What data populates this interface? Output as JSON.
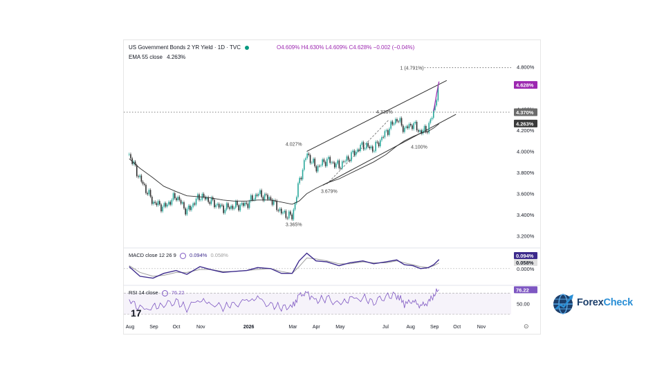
{
  "header": {
    "title": "US Government Bonds 2 YR Yield · 1D · TVC",
    "ohlc": "O4.609%  H4.630%  L4.609%  C4.628%  −0.002 (−0.04%)",
    "ema_label": "EMA 55 close",
    "ema_value": "4.263%",
    "status_color": "#089981"
  },
  "colors": {
    "price_up": "#26a69a",
    "price_down": "#2d2d2d",
    "macd_line": "#3c2a8c",
    "macd_signal": "#9e9e9e",
    "rsi_line": "#7e57c2",
    "current_badge": "#9c27b0",
    "level_badge": "#6b6b6b",
    "ema_badge": "#3a3a3a"
  },
  "logo": {
    "name": "ForexCheck",
    "part1": "Forex",
    "part2": "Check",
    "icon": "globe-chart-icon"
  },
  "chart_data": {
    "type": "line",
    "price": {
      "ylim": [
        3.1,
        4.92
      ],
      "yticks": [
        "4.800%",
        "4.400%",
        "4.200%",
        "4.000%",
        "3.800%",
        "3.600%",
        "3.400%",
        "3.200%"
      ],
      "ytick_values": [
        4.8,
        4.4,
        4.2,
        4.0,
        3.8,
        3.6,
        3.4,
        3.2
      ],
      "x": [
        "2025-08-01",
        "2025-08-15",
        "2025-09-01",
        "2025-09-15",
        "2025-10-01",
        "2025-10-15",
        "2025-11-01",
        "2025-11-15",
        "2025-12-01",
        "2025-12-15",
        "2026-01-01",
        "2026-01-15",
        "2026-02-01",
        "2026-02-15",
        "2026-03-01",
        "2026-03-10",
        "2026-03-20",
        "2026-04-01",
        "2026-04-15",
        "2026-05-01",
        "2026-05-15",
        "2026-06-01",
        "2026-06-15",
        "2026-07-01",
        "2026-07-15",
        "2026-07-25",
        "2026-08-05",
        "2026-08-15",
        "2026-08-25",
        "2026-09-01",
        "2026-09-08"
      ],
      "close": [
        3.97,
        3.74,
        3.52,
        3.47,
        3.58,
        3.43,
        3.58,
        3.53,
        3.46,
        3.48,
        3.5,
        3.6,
        3.55,
        3.42,
        3.38,
        3.71,
        3.98,
        3.84,
        3.92,
        3.86,
        3.95,
        4.06,
        4.02,
        4.18,
        4.31,
        4.21,
        4.26,
        4.18,
        4.22,
        4.38,
        4.63
      ],
      "ema55": [
        3.93,
        3.84,
        3.75,
        3.67,
        3.62,
        3.58,
        3.57,
        3.56,
        3.54,
        3.53,
        3.53,
        3.54,
        3.54,
        3.52,
        3.5,
        3.53,
        3.6,
        3.65,
        3.7,
        3.74,
        3.79,
        3.85,
        3.9,
        3.97,
        4.05,
        4.1,
        4.14,
        4.17,
        4.19,
        4.22,
        4.26
      ],
      "annotations": [
        {
          "text": "4.027%",
          "x": "2026-03-05",
          "y": 4.027
        },
        {
          "text": "4.330%",
          "x": "2026-07-01",
          "y": 4.33
        },
        {
          "text": "3.679%",
          "x": "2026-04-20",
          "y": 3.679
        },
        {
          "text": "4.100%",
          "x": "2026-08-15",
          "y": 4.1
        },
        {
          "text": "3.365%",
          "x": "2026-03-05",
          "y": 3.365
        },
        {
          "text": "1 (4.791%)",
          "x": "2026-08-01",
          "y": 4.791
        }
      ],
      "channel_upper": [
        [
          "2026-03-20",
          4.0
        ],
        [
          "2026-09-18",
          4.67
        ]
      ],
      "channel_lower": [
        [
          "2026-04-10",
          3.68
        ],
        [
          "2026-09-30",
          4.35
        ]
      ],
      "dotted_level": 4.37,
      "badges": [
        {
          "text": "4.628%",
          "y": 4.628,
          "kind": "current"
        },
        {
          "text": "4.370%",
          "y": 4.37,
          "kind": "level"
        },
        {
          "text": "4.263%",
          "y": 4.263,
          "kind": "ema"
        }
      ]
    },
    "macd": {
      "label": "MACD close 12 26 9",
      "value1": "0.094%",
      "value2": "0.058%",
      "ylim": [
        -0.16,
        0.2
      ],
      "yticks": [
        "0.000%"
      ],
      "ytick_values": [
        0
      ],
      "macd": [
        0.02,
        -0.08,
        -0.1,
        -0.05,
        -0.02,
        -0.06,
        0.02,
        -0.01,
        -0.04,
        -0.03,
        -0.02,
        0.01,
        0.0,
        -0.05,
        -0.05,
        0.08,
        0.16,
        0.08,
        0.07,
        0.03,
        0.06,
        0.08,
        0.05,
        0.07,
        0.09,
        0.04,
        0.03,
        0.0,
        0.01,
        0.04,
        0.094
      ],
      "signal": [
        0.03,
        -0.04,
        -0.08,
        -0.07,
        -0.04,
        -0.04,
        -0.01,
        -0.01,
        -0.03,
        -0.03,
        -0.02,
        -0.01,
        0.0,
        -0.03,
        -0.05,
        0.02,
        0.11,
        0.1,
        0.08,
        0.05,
        0.05,
        0.07,
        0.06,
        0.06,
        0.08,
        0.06,
        0.04,
        0.02,
        0.01,
        0.03,
        0.058
      ],
      "badges": [
        {
          "text": "0.094%",
          "kind": "macd"
        },
        {
          "text": "0.058%",
          "kind": "signal"
        }
      ]
    },
    "rsi": {
      "label": "RSI 14 close",
      "value": "76.22",
      "ylim": [
        22,
        82
      ],
      "yticks": [
        "50.00"
      ],
      "ytick_values": [
        50
      ],
      "band": [
        30,
        70
      ],
      "values": [
        58,
        40,
        44,
        47,
        55,
        41,
        58,
        50,
        43,
        50,
        55,
        60,
        48,
        43,
        44,
        66,
        70,
        56,
        60,
        50,
        58,
        62,
        52,
        64,
        66,
        50,
        55,
        46,
        52,
        66,
        76.22
      ]
    },
    "x_ticks": [
      "Aug",
      "Sep",
      "Oct",
      "Nov",
      "2026",
      "Mar",
      "Apr",
      "May",
      "Jul",
      "Aug",
      "Sep",
      "Oct",
      "Nov"
    ],
    "x_tick_dates": [
      "2025-08-01",
      "2025-09-01",
      "2025-10-01",
      "2025-11-01",
      "2026-01-01",
      "2026-03-01",
      "2026-04-01",
      "2026-05-01",
      "2026-07-01",
      "2026-08-01",
      "2026-09-01",
      "2026-10-01",
      "2026-11-01"
    ],
    "bold_x_ticks": [
      "2026"
    ],
    "timezone_glyph": "17",
    "settings_glyph": "⊙"
  }
}
